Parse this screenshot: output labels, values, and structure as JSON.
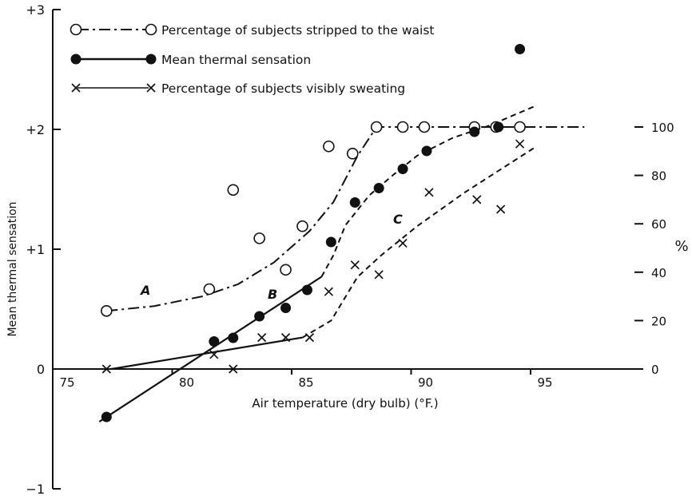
{
  "chart_data": {
    "type": "scatter",
    "title": "",
    "xlabel": "Air temperature (dry bulb) (°F.)",
    "ylabel": "Mean thermal sensation",
    "ylabel_right": "%",
    "xlim": [
      73.5,
      100.5
    ],
    "ylim": [
      -1,
      3
    ],
    "ylim_right": [
      0,
      100
    ],
    "grid": false,
    "legend_position": "top-left",
    "x_ticks": [
      "75",
      "80",
      "85",
      "90",
      "95"
    ],
    "x_tick_values": [
      75,
      80,
      85,
      90,
      95
    ],
    "y_ticks": [
      "+3",
      "+2",
      "+1",
      "0",
      "−1"
    ],
    "y_tick_values": [
      3,
      2,
      1,
      0,
      -1
    ],
    "y_right_ticks": [
      "100",
      "80",
      "60",
      "40",
      "20",
      "0"
    ],
    "y_right_tick_values": [
      100,
      80,
      60,
      40,
      20,
      0
    ],
    "legend": [
      {
        "label": "Percentage of subjects stripped to the waist",
        "marker": "open-circle",
        "line": "dash-dot"
      },
      {
        "label": "Mean thermal sensation",
        "marker": "filled-circle",
        "line": "solid"
      },
      {
        "label": "Percentage of subjects visibly sweating",
        "marker": "cross",
        "line": "solid-thin"
      }
    ],
    "curve_labels": [
      "A",
      "B",
      "C"
    ],
    "series": [
      {
        "name": "Percentage of subjects stripped to the waist",
        "axis": "right",
        "x": [
          77,
          81.3,
          82.3,
          83.4,
          84.5,
          85.2,
          86.3,
          87.3,
          88.3,
          89.4,
          90.3,
          92.4,
          93.3,
          94.3
        ],
        "y": [
          24,
          33,
          74,
          54,
          41,
          59,
          92,
          89,
          100,
          100,
          100,
          100,
          100,
          100
        ]
      },
      {
        "name": "Mean thermal sensation",
        "axis": "left",
        "x": [
          77,
          81.5,
          82.3,
          83.4,
          84.5,
          85.4,
          86.4,
          87.4,
          88.4,
          89.4,
          90.4,
          92.4,
          93.4,
          94.3
        ],
        "y": [
          -0.4,
          0.23,
          0.26,
          0.44,
          0.51,
          0.66,
          1.06,
          1.39,
          1.51,
          1.67,
          1.82,
          1.98,
          2.02,
          2.67
        ]
      },
      {
        "name": "Percentage of subjects visibly sweating",
        "axis": "right",
        "x": [
          77,
          81.5,
          82.3,
          83.5,
          84.5,
          85.5,
          86.3,
          87.4,
          88.4,
          89.4,
          90.5,
          92.5,
          93.5,
          94.3
        ],
        "y": [
          0,
          6,
          0,
          13,
          13,
          13,
          32,
          43,
          39,
          52,
          73,
          70,
          66,
          93
        ]
      }
    ],
    "fit_lines": [
      {
        "series": "A",
        "style": "dash-dot",
        "x": [
          77,
          79,
          81,
          82.5,
          84,
          85.5,
          86.5,
          87.5,
          88.3,
          90,
          97
        ],
        "y": [
          24,
          26,
          30,
          35,
          44,
          57,
          69,
          88,
          100,
          100,
          100
        ],
        "axis": "right"
      },
      {
        "series": "B solid",
        "style": "solid",
        "x": [
          76.7,
          86
        ],
        "y": [
          -0.44,
          0.77
        ],
        "axis": "left"
      },
      {
        "series": "B dashed",
        "style": "dashed",
        "x": [
          86,
          86.5,
          87,
          88,
          89,
          90,
          91.5,
          93,
          95
        ],
        "y": [
          0.77,
          0.95,
          1.2,
          1.45,
          1.62,
          1.78,
          1.93,
          2.03,
          2.2
        ],
        "axis": "left"
      },
      {
        "series": "C solid",
        "style": "solid",
        "x": [
          77.2,
          85.2
        ],
        "y": [
          0,
          13
        ],
        "axis": "right"
      },
      {
        "series": "C dashed",
        "style": "dashed",
        "x": [
          85.2,
          86.4,
          87.5,
          88.5,
          90,
          92,
          95
        ],
        "y": [
          13,
          20,
          38,
          47,
          59,
          73,
          92
        ],
        "axis": "right"
      }
    ]
  }
}
